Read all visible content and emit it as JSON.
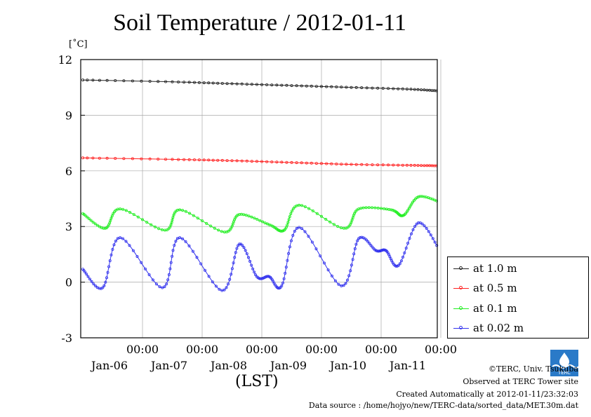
{
  "title": "Soil Temperature / 2012-01-11",
  "unit_label": "[˚C]",
  "x_axis_title": "(LST)",
  "colors": {
    "series_1m": "#222222",
    "series_05m": "#ff2222",
    "series_01m": "#22ee22",
    "series_002m": "#3333ee",
    "grid": "#aaaaaa",
    "logo": "#2a7ac8"
  },
  "credits": {
    "line1": "©TERC, Univ. Tsukuba",
    "line2": "Observed at TERC Tower site",
    "line3": "Created Automatically at 2012-01-11/23:32:03",
    "line4": "Data source : /home/hojyo/new/TERC-data/sorted_data/MET.30m.dat"
  },
  "logo_text": "TERC",
  "chart_data": {
    "type": "line",
    "title": "Soil Temperature / 2012-01-11",
    "xlabel": "(LST)",
    "ylabel": "[˚C]",
    "ylim": [
      -3,
      12
    ],
    "xlim_days": [
      "2012-01-05 00:00",
      "2012-01-11 00:00"
    ],
    "y_ticks": [
      "12",
      "9",
      "6",
      "3",
      "0",
      "-3"
    ],
    "x_ticks": [
      {
        "time": "00:00",
        "date": "Jan-06"
      },
      {
        "time": "00:00",
        "date": "Jan-07"
      },
      {
        "time": "00:00",
        "date": "Jan-08"
      },
      {
        "time": "00:00",
        "date": "Jan-09"
      },
      {
        "time": "00:00",
        "date": "Jan-10"
      },
      {
        "time": "00:00",
        "date": "Jan-11"
      }
    ],
    "grid": true,
    "legend_position": "right",
    "series": [
      {
        "name": "at 1.0 m",
        "color": "#222222",
        "points": [
          [
            "2012-01-05 00:00",
            10.9
          ],
          [
            "2012-01-06 12:00",
            10.8
          ],
          [
            "2012-01-07 12:00",
            10.7
          ],
          [
            "2012-01-08 12:00",
            10.6
          ],
          [
            "2012-01-09 12:00",
            10.5
          ],
          [
            "2012-01-10 12:00",
            10.4
          ],
          [
            "2012-01-11 00:00",
            10.3
          ]
        ]
      },
      {
        "name": "at 0.5 m",
        "color": "#ff2222",
        "points": [
          [
            "2012-01-05 00:00",
            6.7
          ],
          [
            "2012-01-06 12:00",
            6.62
          ],
          [
            "2012-01-07 12:00",
            6.55
          ],
          [
            "2012-01-08 12:00",
            6.45
          ],
          [
            "2012-01-09 12:00",
            6.35
          ],
          [
            "2012-01-10 12:00",
            6.3
          ],
          [
            "2012-01-11 00:00",
            6.27
          ]
        ]
      },
      {
        "name": "at 0.1 m",
        "color": "#22ee22",
        "points": [
          [
            "2012-01-05 00:00",
            3.7
          ],
          [
            "2012-01-05 09:00",
            2.9
          ],
          [
            "2012-01-05 15:00",
            3.95
          ],
          [
            "2012-01-06 09:00",
            2.8
          ],
          [
            "2012-01-06 15:00",
            3.9
          ],
          [
            "2012-01-07 09:00",
            2.7
          ],
          [
            "2012-01-07 15:00",
            3.65
          ],
          [
            "2012-01-08 03:00",
            3.1
          ],
          [
            "2012-01-08 09:00",
            2.8
          ],
          [
            "2012-01-08 15:00",
            4.15
          ],
          [
            "2012-01-09 09:00",
            2.9
          ],
          [
            "2012-01-09 15:00",
            3.95
          ],
          [
            "2012-01-10 04:00",
            3.9
          ],
          [
            "2012-01-10 09:00",
            3.6
          ],
          [
            "2012-01-10 15:00",
            4.6
          ],
          [
            "2012-01-11 00:00",
            4.3
          ]
        ]
      },
      {
        "name": "at 0.02 m",
        "color": "#3333ee",
        "points": [
          [
            "2012-01-05 00:00",
            0.7
          ],
          [
            "2012-01-05 08:00",
            -0.3
          ],
          [
            "2012-01-05 15:00",
            2.4
          ],
          [
            "2012-01-06 08:00",
            -0.3
          ],
          [
            "2012-01-06 15:00",
            2.4
          ],
          [
            "2012-01-07 08:00",
            -0.45
          ],
          [
            "2012-01-07 15:00",
            2.05
          ],
          [
            "2012-01-07 22:00",
            0.3
          ],
          [
            "2012-01-08 03:00",
            0.3
          ],
          [
            "2012-01-08 08:00",
            -0.2
          ],
          [
            "2012-01-08 15:00",
            2.95
          ],
          [
            "2012-01-09 08:00",
            -0.2
          ],
          [
            "2012-01-09 15:00",
            2.35
          ],
          [
            "2012-01-09 22:00",
            1.7
          ],
          [
            "2012-01-10 02:00",
            1.7
          ],
          [
            "2012-01-10 07:00",
            0.9
          ],
          [
            "2012-01-10 15:00",
            3.2
          ],
          [
            "2012-01-11 00:00",
            1.6
          ]
        ]
      }
    ]
  }
}
